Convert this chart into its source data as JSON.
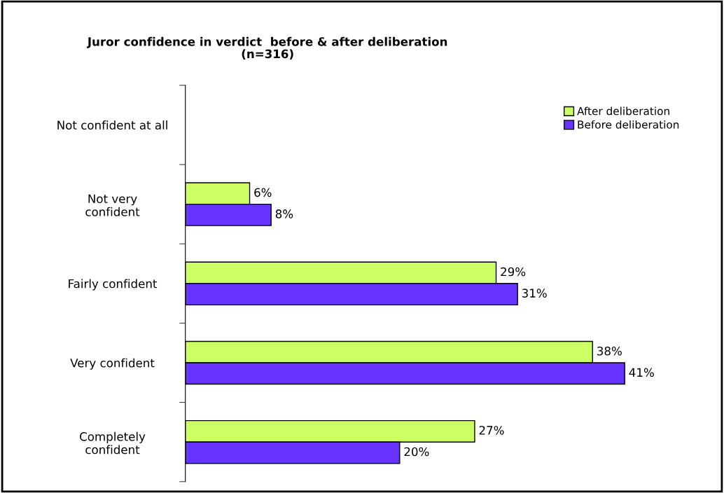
{
  "chart_data": {
    "type": "bar",
    "orientation": "horizontal",
    "title": "Juror confidence in verdict  before & after deliberation\n(n=316)",
    "categories": [
      "Not confident at all",
      "Not very\nconfident",
      "Fairly confident",
      "Very confident",
      "Completely\nconfident"
    ],
    "series": [
      {
        "name": "After deliberation",
        "color": "#ccff66",
        "values": [
          null,
          6,
          29,
          38,
          27
        ],
        "value_labels": [
          null,
          "6%",
          "29%",
          "38%",
          "27%"
        ]
      },
      {
        "name": "Before deliberation",
        "color": "#6633ff",
        "values": [
          null,
          8,
          31,
          41,
          20
        ],
        "value_labels": [
          null,
          "8%",
          "31%",
          "41%",
          "20%"
        ]
      }
    ],
    "legend": "top right",
    "grid": false
  }
}
